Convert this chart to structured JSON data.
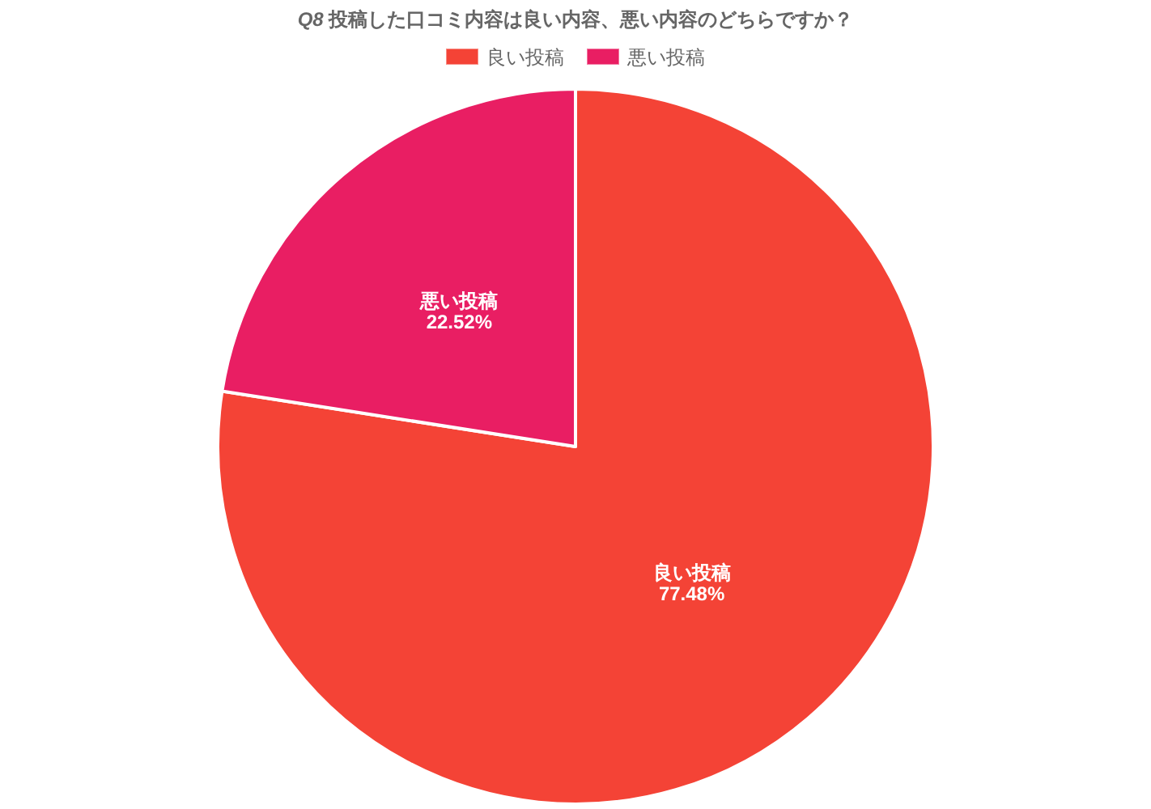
{
  "chart_data": {
    "type": "pie",
    "title": "Q8 投稿した口コミ内容は良い内容、悪い内容のどちらですか？",
    "categories": [
      "良い投稿",
      "悪い投稿"
    ],
    "values": [
      77.48,
      22.52
    ],
    "colors": [
      "#f44336",
      "#e91e63"
    ],
    "value_labels": [
      "77.48%",
      "22.52%"
    ],
    "legend": "top"
  }
}
